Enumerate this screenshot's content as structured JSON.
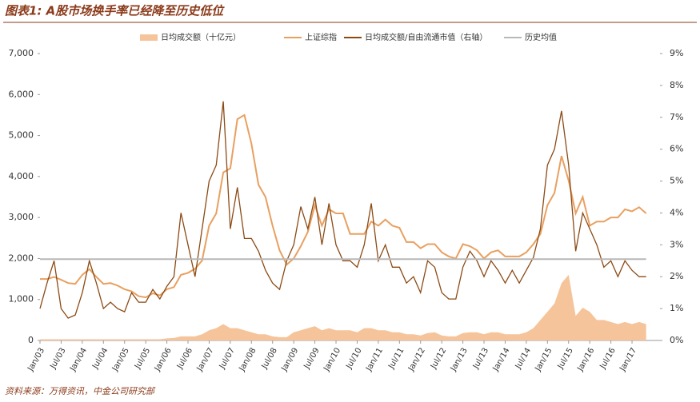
{
  "chart_data": {
    "type": "line",
    "title": "图表1: A股市场换手率已经降至历史低位",
    "source": "资料来源：万得资讯，中金公司研究部",
    "categories": [
      "Jan/03",
      null,
      null,
      "Jul/03",
      null,
      null,
      "Jan/04",
      null,
      null,
      "Jul/04",
      null,
      null,
      "Jan/05",
      null,
      null,
      "Jul/05",
      null,
      null,
      "Jan/06",
      null,
      null,
      "Jul/06",
      null,
      null,
      "Jan/07",
      null,
      null,
      "Jul/07",
      null,
      null,
      "Jan/08",
      null,
      null,
      "Jul/08",
      null,
      null,
      "Jan/09",
      null,
      null,
      "Jul/09",
      null,
      null,
      "Jan/10",
      null,
      null,
      "Jul/10",
      null,
      null,
      "Jan/11",
      null,
      null,
      "Jul/11",
      null,
      null,
      "Jan/12",
      null,
      null,
      "Jul/12",
      null,
      null,
      "Jan/13",
      null,
      null,
      "Jul/13",
      null,
      null,
      "Jan/14",
      null,
      null,
      "Jul/14",
      null,
      null,
      "Jan/15",
      null,
      null,
      "Jul/15",
      null,
      null,
      "Jan/16",
      null,
      null,
      "Jul/16",
      null,
      null,
      "Jan/17",
      null,
      null
    ],
    "series": [
      {
        "name": "日均成交额（十亿元）",
        "kind": "area",
        "color": "#f6c49a",
        "values": [
          30,
          30,
          30,
          30,
          30,
          30,
          30,
          30,
          30,
          30,
          30,
          30,
          30,
          30,
          30,
          30,
          30,
          30,
          50,
          60,
          100,
          100,
          100,
          150,
          250,
          300,
          400,
          300,
          300,
          250,
          200,
          150,
          150,
          100,
          80,
          80,
          200,
          250,
          300,
          350,
          250,
          300,
          250,
          250,
          250,
          200,
          300,
          300,
          250,
          250,
          200,
          200,
          150,
          150,
          120,
          180,
          200,
          120,
          100,
          100,
          180,
          200,
          200,
          150,
          200,
          200,
          150,
          150,
          150,
          200,
          300,
          500,
          700,
          900,
          1400,
          1600,
          600,
          800,
          700,
          500,
          500,
          450,
          400,
          450,
          400,
          450,
          400
        ]
      },
      {
        "name": "上证综指",
        "kind": "line",
        "color": "#e8a060",
        "values": [
          1500,
          1500,
          1550,
          1480,
          1400,
          1380,
          1600,
          1740,
          1550,
          1380,
          1400,
          1340,
          1250,
          1200,
          1080,
          1050,
          1150,
          1100,
          1250,
          1300,
          1600,
          1650,
          1750,
          1950,
          2800,
          3100,
          4100,
          4200,
          5400,
          5500,
          4800,
          3800,
          3500,
          2800,
          2200,
          1850,
          2000,
          2300,
          2650,
          3300,
          2800,
          3200,
          3100,
          3100,
          2600,
          2600,
          2600,
          2900,
          2800,
          2950,
          2800,
          2750,
          2400,
          2400,
          2250,
          2350,
          2350,
          2150,
          2050,
          2000,
          2350,
          2300,
          2200,
          2000,
          2150,
          2200,
          2050,
          2050,
          2050,
          2150,
          2350,
          2600,
          3300,
          3600,
          4500,
          3900,
          3100,
          3500,
          2800,
          2900,
          2900,
          3000,
          3000,
          3200,
          3150,
          3250,
          3100
        ]
      },
      {
        "name": "日均成交额/自由流通市值（右轴）",
        "kind": "line",
        "axis": "y2",
        "color": "#8b4a14",
        "values": [
          1.0,
          1.8,
          2.5,
          1.0,
          0.7,
          0.8,
          1.5,
          2.5,
          1.8,
          1.0,
          1.2,
          1.0,
          0.9,
          1.5,
          1.2,
          1.2,
          1.6,
          1.3,
          1.7,
          2.0,
          4.0,
          3.0,
          2.0,
          3.5,
          5.0,
          5.5,
          7.5,
          3.5,
          4.8,
          3.2,
          3.2,
          2.8,
          2.2,
          1.8,
          1.6,
          2.5,
          3.0,
          4.2,
          3.5,
          4.5,
          3.0,
          4.3,
          3.0,
          2.5,
          2.5,
          2.3,
          3.0,
          4.3,
          2.5,
          3.0,
          2.3,
          2.3,
          1.8,
          2.0,
          1.5,
          2.5,
          2.3,
          1.5,
          1.3,
          1.3,
          2.3,
          2.8,
          2.5,
          2.0,
          2.5,
          2.2,
          1.8,
          2.2,
          1.8,
          2.2,
          2.6,
          3.5,
          5.5,
          6.0,
          7.2,
          5.5,
          2.8,
          4.0,
          3.5,
          3.0,
          2.3,
          2.5,
          2.0,
          2.5,
          2.2,
          2.0,
          2.0
        ]
      },
      {
        "name": "历史均值",
        "kind": "line",
        "axis": "y2",
        "color": "#b8b8b8",
        "values": [
          2.55,
          2.55,
          2.55,
          2.55,
          2.55,
          2.55,
          2.55,
          2.55,
          2.55,
          2.55,
          2.55,
          2.55,
          2.55,
          2.55,
          2.55,
          2.55,
          2.55,
          2.55,
          2.55,
          2.55,
          2.55,
          2.55,
          2.55,
          2.55,
          2.55,
          2.55,
          2.55,
          2.55,
          2.55,
          2.55,
          2.55,
          2.55,
          2.55,
          2.55,
          2.55,
          2.55,
          2.55,
          2.55,
          2.55,
          2.55,
          2.55,
          2.55,
          2.55,
          2.55,
          2.55,
          2.55,
          2.55,
          2.55,
          2.55,
          2.55,
          2.55,
          2.55,
          2.55,
          2.55,
          2.55,
          2.55,
          2.55,
          2.55,
          2.55,
          2.55,
          2.55,
          2.55,
          2.55,
          2.55,
          2.55,
          2.55,
          2.55,
          2.55,
          2.55,
          2.55,
          2.55,
          2.55,
          2.55,
          2.55,
          2.55,
          2.55,
          2.55,
          2.55,
          2.55,
          2.55,
          2.55,
          2.55,
          2.55,
          2.55,
          2.55,
          2.55,
          2.55
        ]
      }
    ],
    "ylim": [
      0,
      7000
    ],
    "yticks": [
      0,
      {
        "value": 1000,
        "label": "1,000"
      },
      {
        "value": 2000,
        "label": "2,000"
      },
      {
        "value": 3000,
        "label": "3,000"
      },
      {
        "value": 4000,
        "label": "4,000"
      },
      {
        "value": 5000,
        "label": "5,000"
      },
      {
        "value": 6000,
        "label": "6,000"
      },
      {
        "value": 7000,
        "label": "7,000"
      }
    ],
    "y2lim": [
      0,
      9
    ],
    "y2ticks": [
      {
        "value": 0,
        "label": "0%"
      },
      {
        "value": 1,
        "label": "1%"
      },
      {
        "value": 2,
        "label": "2%"
      },
      {
        "value": 3,
        "label": "3%"
      },
      {
        "value": 4,
        "label": "4%"
      },
      {
        "value": 5,
        "label": "5%"
      },
      {
        "value": 6,
        "label": "6%"
      },
      {
        "value": 7,
        "label": "7%"
      },
      {
        "value": 8,
        "label": "8%"
      },
      {
        "value": 9,
        "label": "9%"
      }
    ]
  }
}
